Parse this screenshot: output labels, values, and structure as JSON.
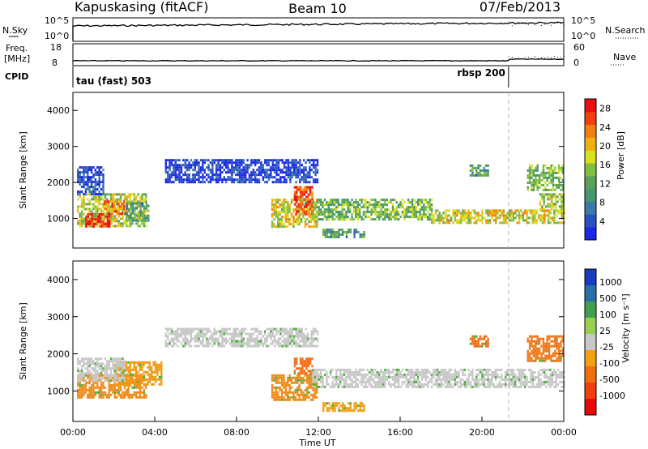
{
  "header": {
    "station": "Kapuskasing (fitACF)",
    "beam": "Beam 10",
    "date": "07/Feb/2013"
  },
  "top_panels": {
    "nsky_label": "N.Sky",
    "nsky_ticks": [
      "10^5",
      "10^0"
    ],
    "nsearch_label": "N.Search",
    "nsearch_ticks": [
      "10^5",
      "10^0"
    ],
    "freq_label": "Freq.",
    "freq_unit": "[MHz]",
    "freq_ticks": [
      "18",
      "8"
    ],
    "nave_label": "Nave",
    "nave_ticks": [
      "60",
      "0"
    ],
    "cpid_label": "CPID",
    "cpid_modes": [
      {
        "name": "tau (fast) 503",
        "start_hour": 0
      },
      {
        "name": "rbsp 200",
        "start_hour": 21.3
      }
    ]
  },
  "chart_data": [
    {
      "type": "heatmap",
      "panel": "power",
      "ylabel": "Slant Range [km]",
      "ylim": [
        180,
        4500
      ],
      "yticks": [
        1000,
        2000,
        3000,
        4000
      ],
      "xlim": [
        0,
        24
      ],
      "colorbar": {
        "label": "Power [dB]",
        "range": [
          0,
          30
        ],
        "ticks": [
          4,
          8,
          12,
          16,
          20,
          24,
          28
        ],
        "colors": [
          "#1a28e8",
          "#2850c0",
          "#3c78a8",
          "#46966e",
          "#5aa05a",
          "#80c040",
          "#d8e020",
          "#f0b010",
          "#f08010",
          "#f04010",
          "#e81010"
        ]
      },
      "regions": [
        {
          "t0": 0.2,
          "t1": 3.6,
          "r0": 800,
          "r1": 1700,
          "level": 0.55
        },
        {
          "t0": 0.6,
          "t1": 1.8,
          "r0": 800,
          "r1": 1150,
          "level": 0.95
        },
        {
          "t0": 0.2,
          "t1": 1.5,
          "r0": 1700,
          "r1": 2450,
          "level": 0.12
        },
        {
          "t0": 1.5,
          "t1": 2.6,
          "r0": 1150,
          "r1": 1500,
          "level": 0.8
        },
        {
          "t0": 2.6,
          "t1": 3.7,
          "r0": 950,
          "r1": 1450,
          "level": 0.35
        },
        {
          "t0": 4.5,
          "t1": 12,
          "r0": 2000,
          "r1": 2650,
          "level": 0.08
        },
        {
          "t0": 9.7,
          "t1": 11.9,
          "r0": 750,
          "r1": 1550,
          "level": 0.6
        },
        {
          "t0": 10.8,
          "t1": 11.7,
          "r0": 1100,
          "r1": 1900,
          "level": 0.85
        },
        {
          "t0": 11.7,
          "t1": 17.5,
          "r0": 1000,
          "r1": 1550,
          "level": 0.45
        },
        {
          "t0": 17.5,
          "t1": 24,
          "r0": 850,
          "r1": 1250,
          "level": 0.6
        },
        {
          "t0": 12.2,
          "t1": 14.2,
          "r0": 450,
          "r1": 720,
          "level": 0.35
        },
        {
          "t0": 19.4,
          "t1": 20.3,
          "r0": 2200,
          "r1": 2500,
          "level": 0.35
        },
        {
          "t0": 22.2,
          "t1": 24,
          "r0": 1800,
          "r1": 2500,
          "level": 0.45
        },
        {
          "t0": 22.8,
          "t1": 24,
          "r0": 1250,
          "r1": 1700,
          "level": 0.5
        }
      ]
    },
    {
      "type": "heatmap",
      "panel": "velocity",
      "ylabel": "Slant Range [km]",
      "xlabel": "Time UT",
      "ylim": [
        180,
        4500
      ],
      "yticks": [
        1000,
        2000,
        3000,
        4000
      ],
      "xlim": [
        0,
        24
      ],
      "xticks": [
        "00:00",
        "04:00",
        "08:00",
        "12:00",
        "16:00",
        "20:00",
        "00:00"
      ],
      "colorbar": {
        "label": "Velocity [m s⁻¹]",
        "ticks": [
          "1000",
          "500",
          "100",
          "25",
          "-25",
          "-100",
          "-500",
          "-1000"
        ],
        "colors": [
          "#1a3cc0",
          "#2870a8",
          "#40a050",
          "#9ad050",
          "#c8c8c8",
          "#f0a010",
          "#f07010",
          "#f04010",
          "#e80808"
        ]
      },
      "regions": [
        {
          "t0": 0.2,
          "t1": 3.6,
          "r0": 800,
          "r1": 1450,
          "color": "#f08a18"
        },
        {
          "t0": 2.0,
          "t1": 4.3,
          "r0": 1200,
          "r1": 1800,
          "color": "#f09a10"
        },
        {
          "t0": 0.2,
          "t1": 2.5,
          "r0": 1300,
          "r1": 1900,
          "color": "#c8c8c8"
        },
        {
          "t0": 4.5,
          "t1": 12,
          "r0": 2200,
          "r1": 2700,
          "color": "#c8c8c8"
        },
        {
          "t0": 9.7,
          "t1": 11.9,
          "r0": 750,
          "r1": 1450,
          "color": "#f08a18"
        },
        {
          "t0": 10.8,
          "t1": 11.7,
          "r0": 1450,
          "r1": 1900,
          "color": "#f07018"
        },
        {
          "t0": 11.7,
          "t1": 24,
          "r0": 1100,
          "r1": 1600,
          "color": "#c8c8c8"
        },
        {
          "t0": 12.2,
          "t1": 14.2,
          "r0": 450,
          "r1": 700,
          "color": "#f0a018"
        },
        {
          "t0": 19.4,
          "t1": 20.3,
          "r0": 2200,
          "r1": 2500,
          "color": "#f07018"
        },
        {
          "t0": 22.2,
          "t1": 24,
          "r0": 1800,
          "r1": 2500,
          "color": "#f07818"
        }
      ]
    }
  ]
}
